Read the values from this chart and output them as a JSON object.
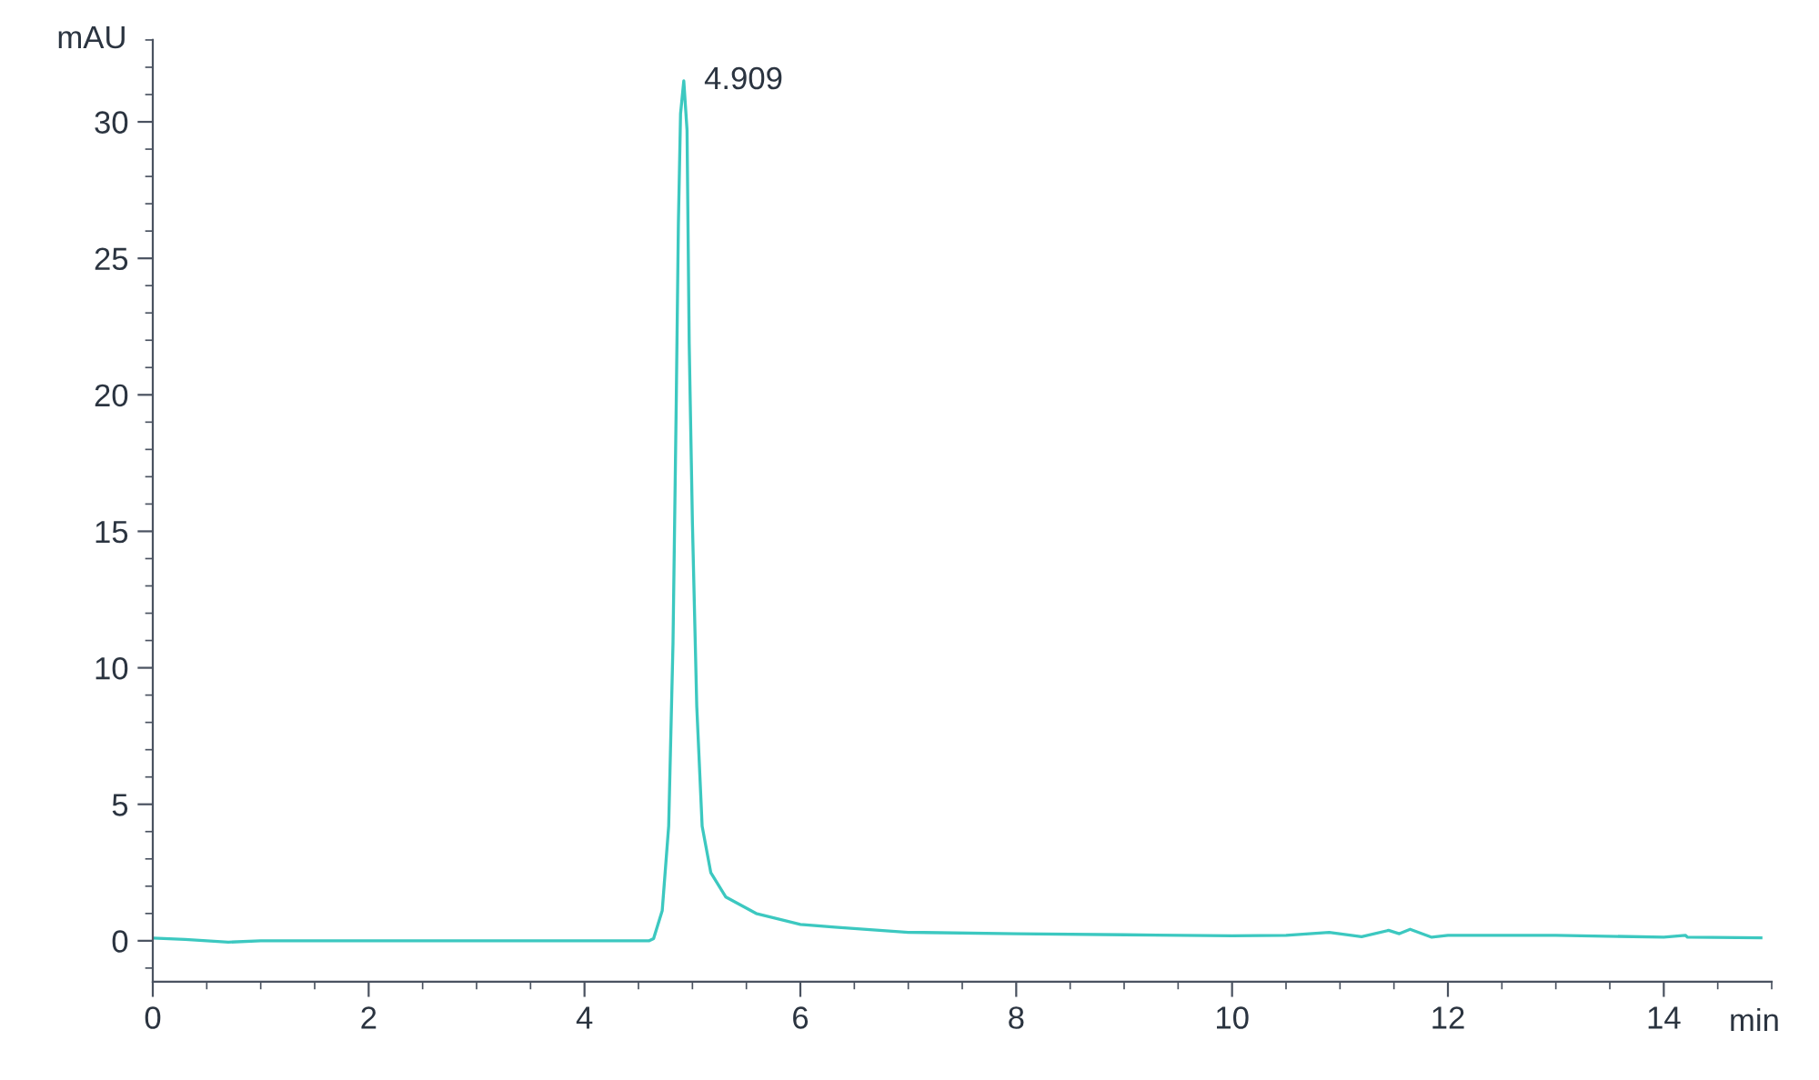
{
  "chart_data": {
    "type": "line",
    "xlabel": "min",
    "ylabel": "mAU",
    "xlim": [
      0,
      15
    ],
    "ylim": [
      -1.5,
      33
    ],
    "xticks": [
      0,
      2,
      4,
      6,
      8,
      10,
      12,
      14
    ],
    "yticks": [
      0,
      5,
      10,
      15,
      20,
      25,
      30
    ],
    "grid": false,
    "legend": false,
    "marker": "none",
    "line_style": "solid",
    "series": [
      {
        "color": "#3cc8c0",
        "x": [
          0,
          0.3,
          0.5,
          0.7,
          1.0,
          2.0,
          3.0,
          4.0,
          4.6,
          4.64,
          4.72,
          4.78,
          4.82,
          4.85,
          4.87,
          4.89,
          4.92,
          4.95,
          4.97,
          5.0,
          5.04,
          5.09,
          5.17,
          5.31,
          5.59,
          6.0,
          6.32,
          7.0,
          8.0,
          9.0,
          10.0,
          10.5,
          10.9,
          11.2,
          11.45,
          11.55,
          11.65,
          11.85,
          12.0,
          13.0,
          14.0,
          14.2,
          14.22,
          14.9
        ],
        "values": [
          0.1,
          0.05,
          0.0,
          -0.05,
          0.0,
          0.0,
          0.0,
          0.0,
          0.0,
          0.08,
          1.1,
          4.2,
          10.9,
          19.7,
          26.3,
          30.3,
          31.5,
          29.7,
          21.9,
          15.3,
          8.6,
          4.2,
          2.5,
          1.6,
          1.0,
          0.6,
          0.5,
          0.31,
          0.26,
          0.22,
          0.18,
          0.2,
          0.31,
          0.15,
          0.38,
          0.26,
          0.42,
          0.13,
          0.2,
          0.2,
          0.13,
          0.2,
          0.13,
          0.11
        ]
      }
    ],
    "annotations": [
      {
        "text": "4.909",
        "x": 4.92,
        "y": 31.5
      }
    ]
  }
}
